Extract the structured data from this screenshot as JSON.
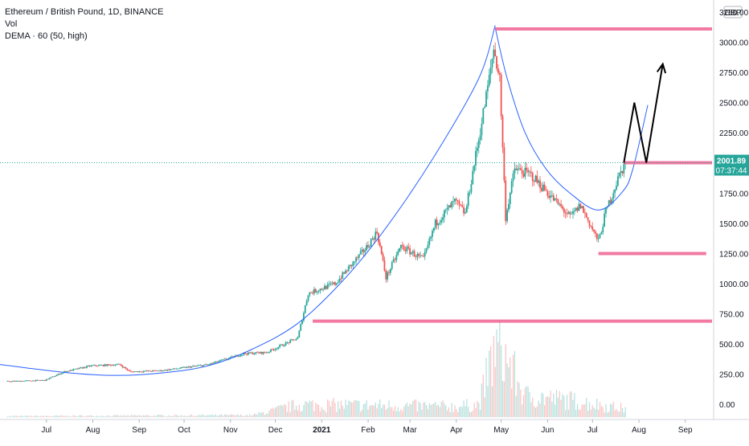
{
  "chart_data": {
    "type": "candlestick",
    "title": "Ethereum / British Pound, 1D, BINANCE",
    "indicators": [
      "Vol",
      "DEMA · 60 (50, high)"
    ],
    "currency": "GBP",
    "y_ticks": [
      "3250.00",
      "3000.00",
      "2750.00",
      "2500.00",
      "2250.00",
      "2000.00",
      "1750.00",
      "1500.00",
      "1250.00",
      "1000.00",
      "750.00",
      "500.00",
      "250.00",
      "0.00"
    ],
    "y_tick_values": [
      3250,
      3000,
      2750,
      2500,
      2250,
      2000,
      1750,
      1500,
      1250,
      1000,
      750,
      500,
      250,
      0
    ],
    "ylim": [
      -125,
      3350
    ],
    "x_ticks": [
      "Jul",
      "Aug",
      "Sep",
      "Oct",
      "Nov",
      "Dec",
      "2021",
      "Feb",
      "Mar",
      "Apr",
      "May",
      "Jun",
      "Jul",
      "Aug",
      "Sep"
    ],
    "x_start": "2020-06-15",
    "x_end": "2021-10-05",
    "last_price": "2001.89",
    "countdown": "07:37:44",
    "price_keypoints": [
      [
        "2020-06-20",
        190
      ],
      [
        "2020-07-15",
        200
      ],
      [
        "2020-07-28",
        270
      ],
      [
        "2020-08-15",
        320
      ],
      [
        "2020-09-03",
        330
      ],
      [
        "2020-09-10",
        270
      ],
      [
        "2020-10-01",
        280
      ],
      [
        "2020-11-01",
        330
      ],
      [
        "2020-11-25",
        420
      ],
      [
        "2020-12-10",
        430
      ],
      [
        "2020-12-31",
        550
      ],
      [
        "2021-01-07",
        920
      ],
      [
        "2021-01-25",
        1000
      ],
      [
        "2021-02-15",
        1300
      ],
      [
        "2021-02-22",
        1430
      ],
      [
        "2021-02-28",
        1050
      ],
      [
        "2021-03-10",
        1310
      ],
      [
        "2021-03-25",
        1200
      ],
      [
        "2021-04-02",
        1500
      ],
      [
        "2021-04-15",
        1680
      ],
      [
        "2021-04-22",
        1580
      ],
      [
        "2021-05-01",
        2200
      ],
      [
        "2021-05-08",
        2700
      ],
      [
        "2021-05-11",
        2950
      ],
      [
        "2021-05-15",
        2700
      ],
      [
        "2021-05-19",
        1550
      ],
      [
        "2021-05-25",
        1950
      ],
      [
        "2021-06-05",
        1900
      ],
      [
        "2021-06-20",
        1700
      ],
      [
        "2021-07-01",
        1550
      ],
      [
        "2021-07-08",
        1650
      ],
      [
        "2021-07-20",
        1350
      ],
      [
        "2021-07-25",
        1600
      ],
      [
        "2021-08-03",
        1900
      ],
      [
        "2021-08-07",
        2000
      ]
    ],
    "dema_curve": [
      [
        "2020-06-15",
        330
      ],
      [
        "2020-08-01",
        260
      ],
      [
        "2020-09-01",
        240
      ],
      [
        "2020-10-01",
        260
      ],
      [
        "2020-11-01",
        320
      ],
      [
        "2020-12-01",
        460
      ],
      [
        "2021-01-01",
        680
      ],
      [
        "2021-02-01",
        1050
      ],
      [
        "2021-03-01",
        1480
      ],
      [
        "2021-04-01",
        2050
      ],
      [
        "2021-05-01",
        2700
      ],
      [
        "2021-05-12",
        3140
      ]
    ],
    "descending_curve": [
      [
        "2021-05-12",
        3120
      ],
      [
        "2021-05-20",
        2700
      ],
      [
        "2021-06-01",
        2250
      ],
      [
        "2021-06-15",
        1950
      ],
      [
        "2021-07-01",
        1750
      ],
      [
        "2021-07-20",
        1610
      ],
      [
        "2021-08-05",
        1760
      ],
      [
        "2021-08-12",
        1950
      ],
      [
        "2021-08-22",
        2480
      ]
    ],
    "horizontal_levels": [
      {
        "from": "2021-05-12",
        "to": "2021-10-05",
        "price": 3110
      },
      {
        "from": "2021-08-06",
        "to": "2021-10-05",
        "price": 2002
      },
      {
        "from": "2021-07-20",
        "to": "2021-09-30",
        "price": 1250
      },
      {
        "from": "2021-01-10",
        "to": "2021-10-05",
        "price": 690
      }
    ],
    "projection_path": [
      [
        "2021-08-06",
        2002
      ],
      [
        "2021-08-13",
        2500
      ],
      [
        "2021-08-21",
        2002
      ],
      [
        "2021-09-01",
        2820
      ]
    ],
    "volume_keypoints": [
      [
        "2020-06-15",
        5
      ],
      [
        "2020-12-01",
        10
      ],
      [
        "2021-01-01",
        60
      ],
      [
        "2021-03-01",
        55
      ],
      [
        "2021-04-15",
        50
      ],
      [
        "2021-05-01",
        60
      ],
      [
        "2021-05-12",
        320
      ],
      [
        "2021-05-19",
        280
      ],
      [
        "2021-06-01",
        100
      ],
      [
        "2021-07-01",
        80
      ],
      [
        "2021-08-07",
        40
      ]
    ],
    "colors": {
      "up": "#26a69a",
      "down": "#ef5350",
      "dema": "#2962ff",
      "levels": "#f06292",
      "price_line": "#26a69a",
      "arrow": "#000000"
    }
  }
}
